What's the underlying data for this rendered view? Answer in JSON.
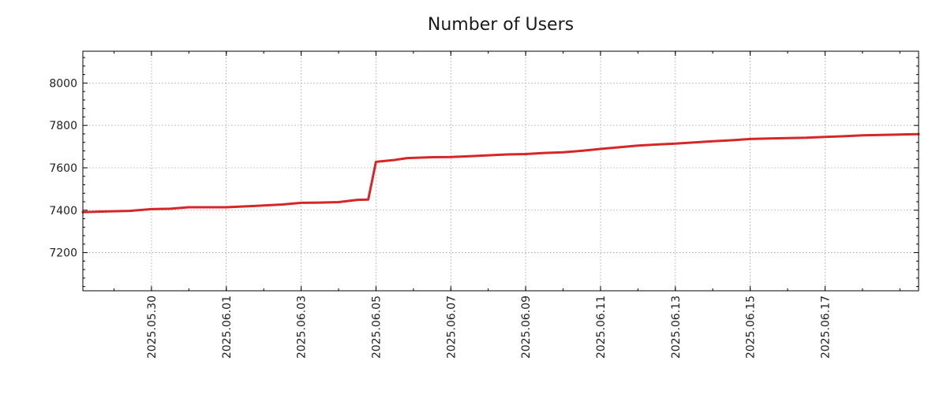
{
  "chart_data": {
    "type": "line",
    "title": "Number of Users",
    "xlabel": "",
    "ylabel": "",
    "x_type": "date",
    "xlim": [
      "2025-05-28T04:00",
      "2025-06-19T12:00"
    ],
    "ylim": [
      7020,
      8150
    ],
    "x_ticks": [
      "2025-05-30",
      "2025-06-01",
      "2025-06-03",
      "2025-06-05",
      "2025-06-07",
      "2025-06-09",
      "2025-06-11",
      "2025-06-13",
      "2025-06-15",
      "2025-06-17"
    ],
    "x_tick_labels": [
      "2025.05.30",
      "2025.06.01",
      "2025.06.03",
      "2025.06.05",
      "2025.06.07",
      "2025.06.09",
      "2025.06.11",
      "2025.06.13",
      "2025.06.15",
      "2025.06.17"
    ],
    "y_ticks": [
      7200,
      7400,
      7600,
      7800,
      8000
    ],
    "y_tick_labels": [
      "7200",
      "7400",
      "7600",
      "7800",
      "8000"
    ],
    "grid": true,
    "line_color": "#d62728",
    "series": [
      {
        "x": [
          "2025-05-28T04:00",
          "2025-05-28T18:00",
          "2025-05-29T10:00",
          "2025-05-30T00:00",
          "2025-05-30T12:00",
          "2025-05-31T00:00",
          "2025-06-01T00:00",
          "2025-06-01T18:00",
          "2025-06-02T12:00",
          "2025-06-03T00:00",
          "2025-06-03T12:00",
          "2025-06-04T00:00",
          "2025-06-04T12:00",
          "2025-06-04T19:00",
          "2025-06-05T00:00",
          "2025-06-05T12:00",
          "2025-06-05T20:00",
          "2025-06-06T12:00",
          "2025-06-07T00:00",
          "2025-06-07T12:00",
          "2025-06-08T00:00",
          "2025-06-08T12:00",
          "2025-06-09T00:00",
          "2025-06-09T12:00",
          "2025-06-10T00:00",
          "2025-06-10T12:00",
          "2025-06-11T00:00",
          "2025-06-11T12:00",
          "2025-06-12T00:00",
          "2025-06-12T12:00",
          "2025-06-13T00:00",
          "2025-06-13T12:00",
          "2025-06-14T00:00",
          "2025-06-14T12:00",
          "2025-06-15T00:00",
          "2025-06-15T12:00",
          "2025-06-16T00:00",
          "2025-06-16T12:00",
          "2025-06-17T00:00",
          "2025-06-17T12:00",
          "2025-06-18T00:00",
          "2025-06-18T12:00",
          "2025-06-19T00:00",
          "2025-06-19T12:00"
        ],
        "y": [
          7391,
          7394,
          7397,
          7405,
          7407,
          7414,
          7414,
          7420,
          7427,
          7435,
          7436,
          7438,
          7449,
          7450,
          7628,
          7637,
          7646,
          7650,
          7651,
          7655,
          7659,
          7663,
          7665,
          7670,
          7673,
          7680,
          7689,
          7697,
          7705,
          7710,
          7714,
          7720,
          7725,
          7730,
          7736,
          7738,
          7740,
          7742,
          7746,
          7749,
          7753,
          7755,
          7757,
          7759
        ]
      }
    ]
  }
}
